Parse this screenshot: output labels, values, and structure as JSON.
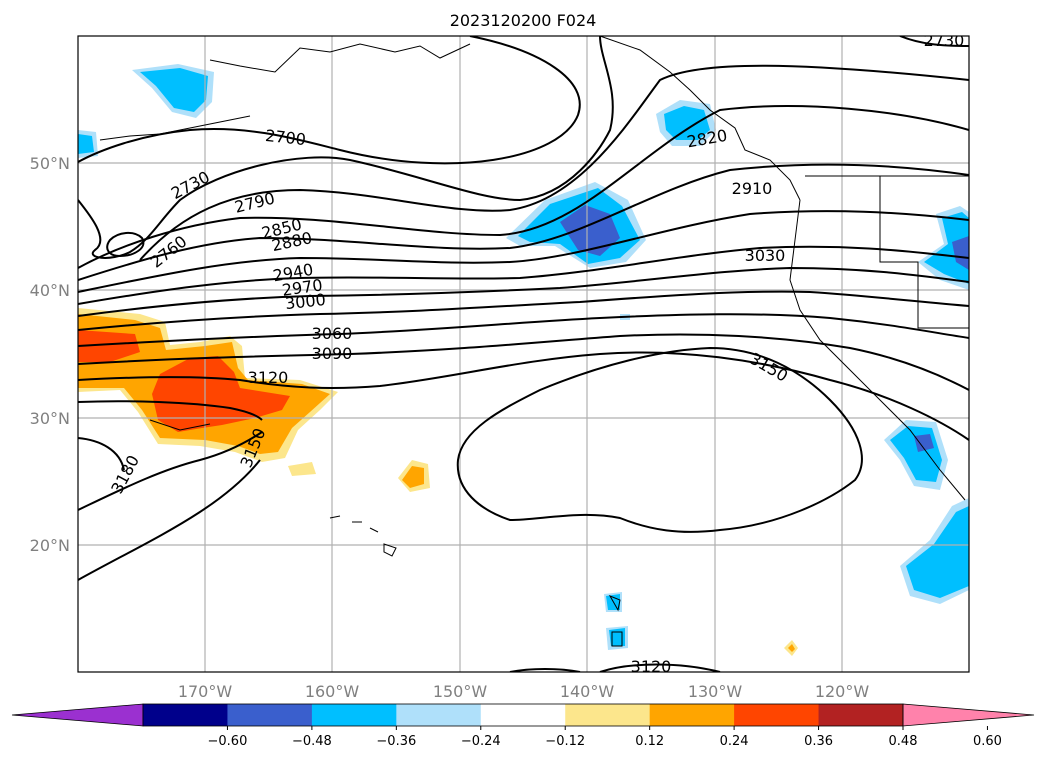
{
  "title": "2023120200 F024",
  "lat_labels": [
    "50°N",
    "40°N",
    "30°N",
    "20°N"
  ],
  "lon_labels": [
    "170°W",
    "160°W",
    "150°W",
    "140°W",
    "130°W",
    "120°W"
  ],
  "contour_labels": [
    "2730",
    "2700",
    "2730",
    "2820",
    "2910",
    "2790",
    "2760",
    "2850",
    "2880",
    "3030",
    "2940",
    "2970",
    "3000",
    "3060",
    "3090",
    "3120",
    "3150",
    "3150",
    "3180",
    "3120"
  ],
  "colorbar": {
    "ticks": [
      "−0.60",
      "−0.48",
      "−0.36",
      "−0.24",
      "−0.12",
      "0.12",
      "0.24",
      "0.36",
      "0.48",
      "0.60"
    ],
    "colors": [
      "#9b30d0",
      "#00008b",
      "#3a5fcd",
      "#00bfff",
      "#afe0fa",
      "#ffffff",
      "#fce68c",
      "#ffa500",
      "#ff4500",
      "#b22222",
      "#ff82ab"
    ]
  },
  "map": {
    "lat_range": [
      10,
      60
    ],
    "lon_range": [
      -180,
      -110
    ],
    "gridlines": true
  },
  "colors": {
    "contour": "#000000",
    "grid": "#b0b0b0",
    "label": "#808080"
  }
}
